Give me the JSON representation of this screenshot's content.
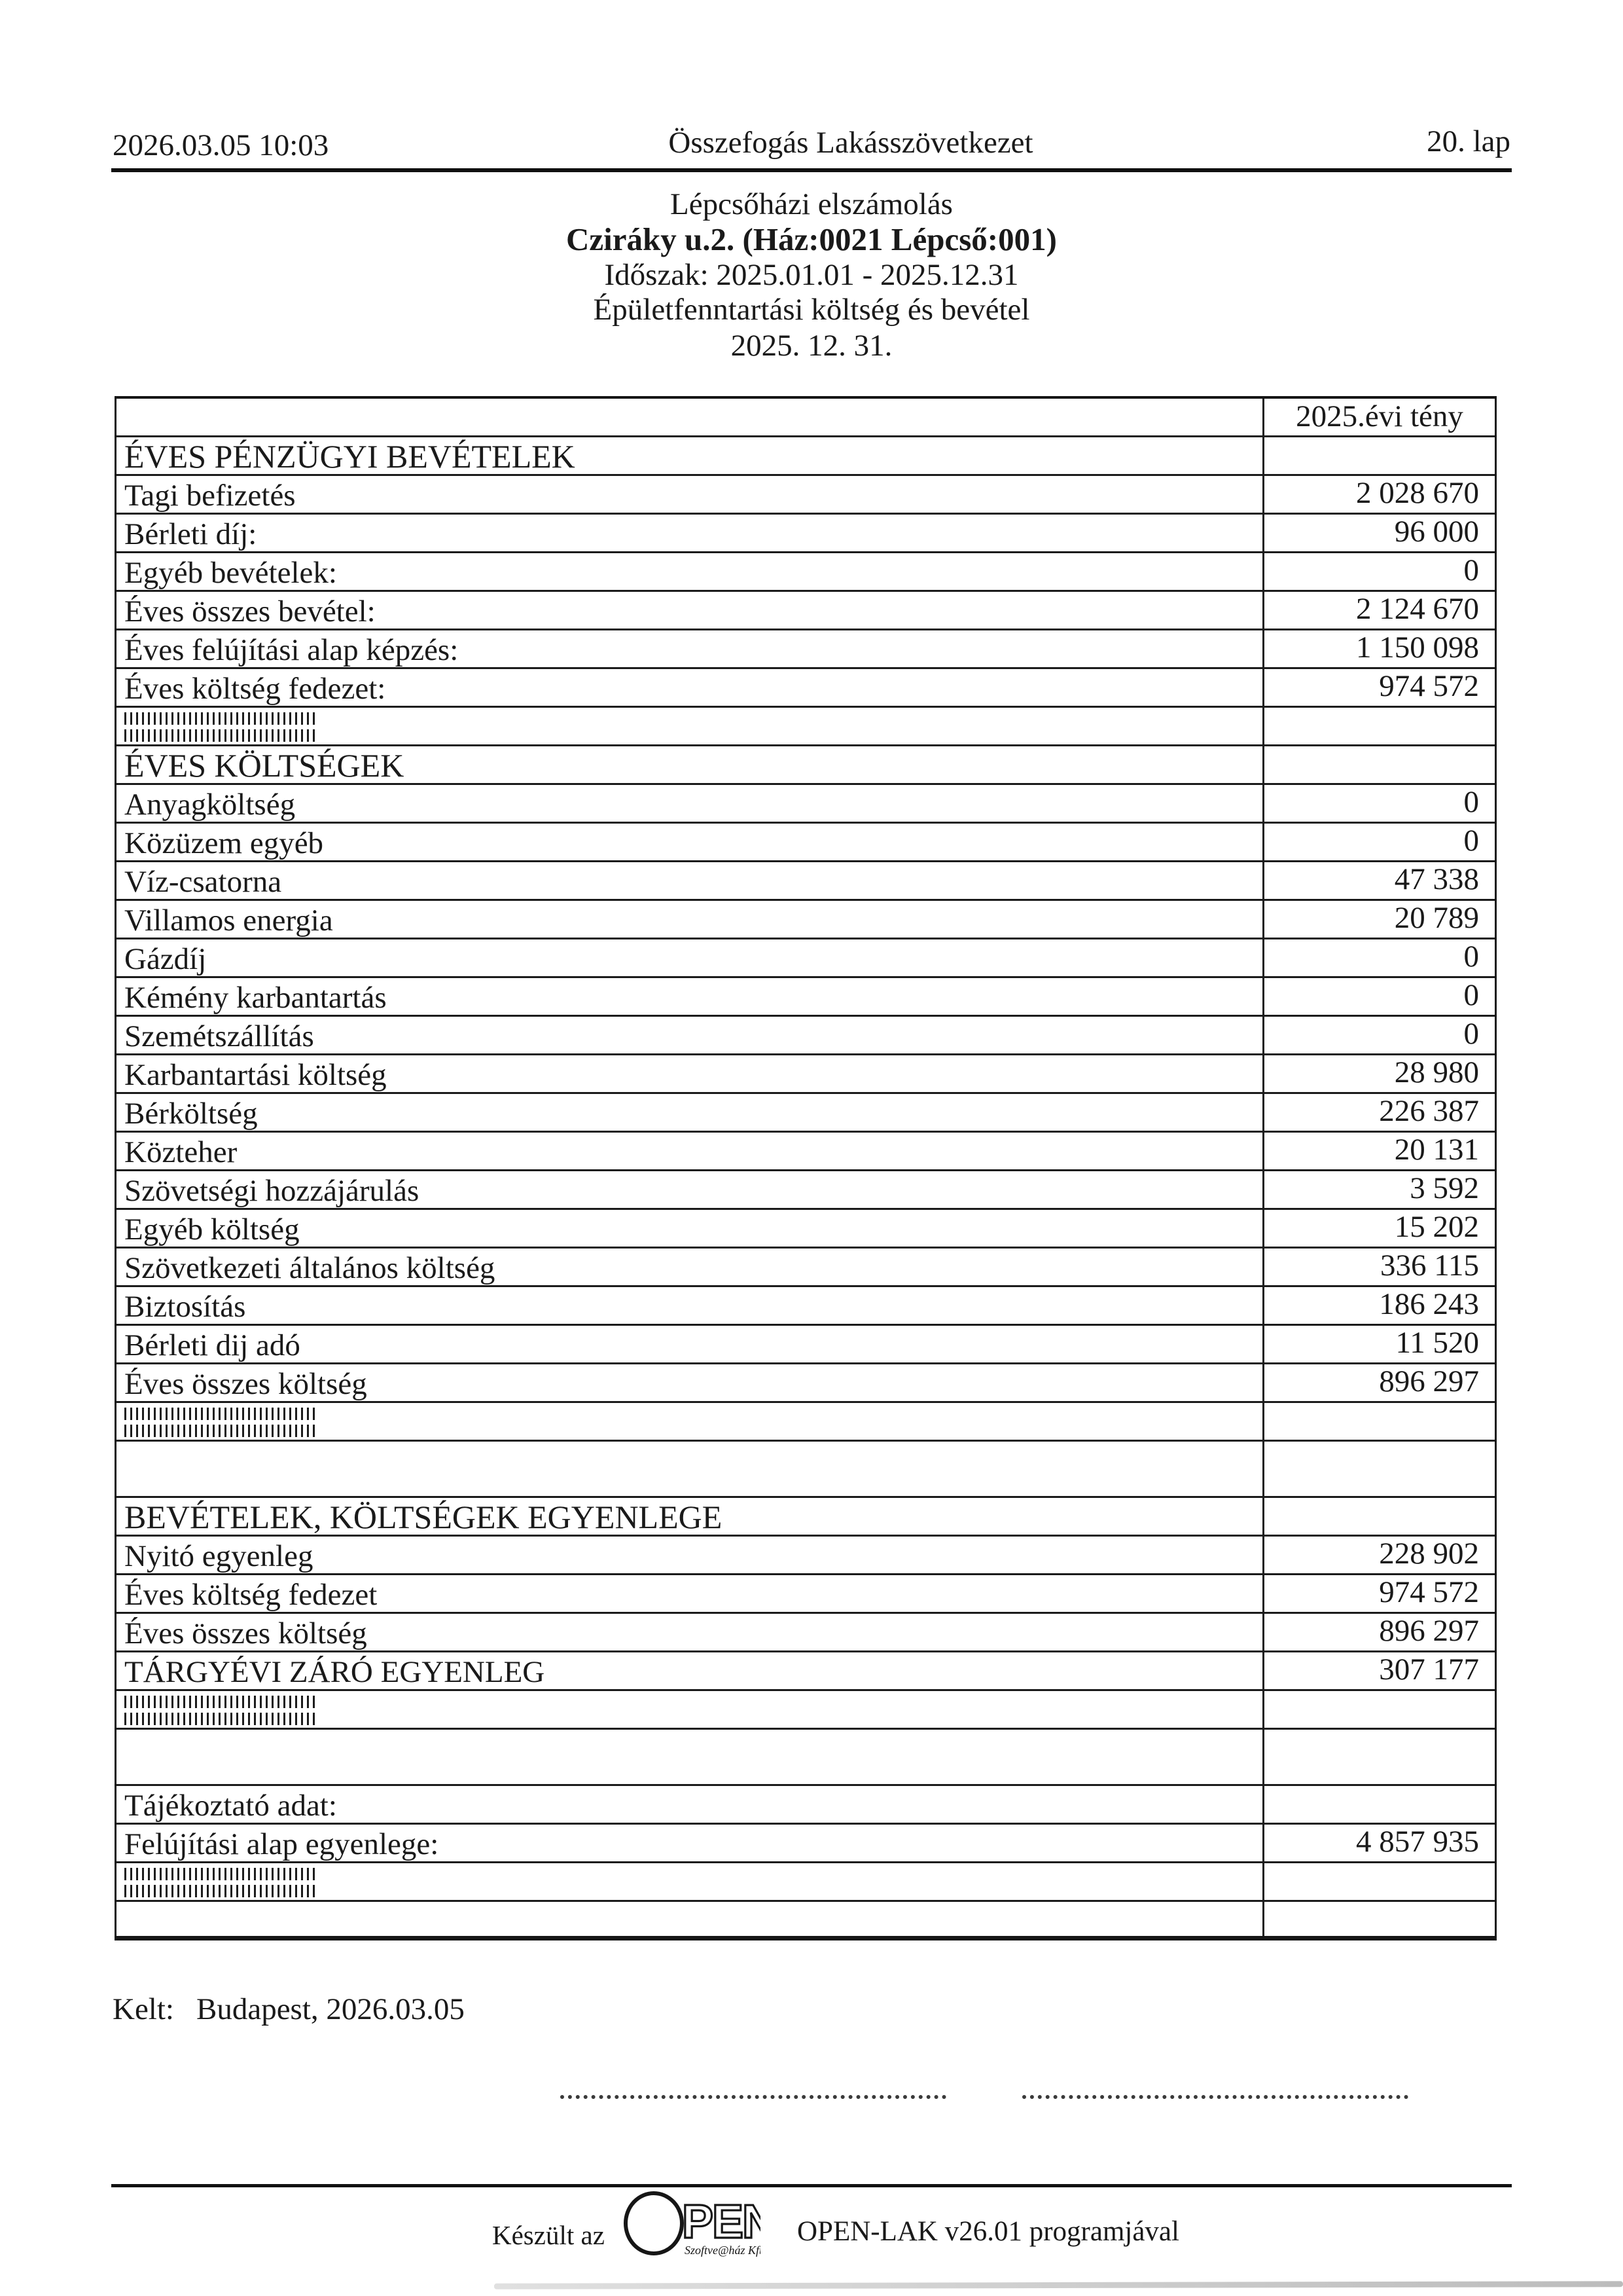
{
  "colors": {
    "ink": "#1a1a1a",
    "paper": "#ffffff"
  },
  "header": {
    "datetime": "2026.03.05 10:03",
    "organization": "Összefogás Lakásszövetkezet",
    "page_label": "20. lap"
  },
  "title": {
    "report_type": "Lépcsőházi elszámolás",
    "address": "Cziráky u.2. (Ház:0021 Lépcső:001)",
    "period": "Időszak: 2025.01.01 - 2025.12.31",
    "subject": "Épületfenntartási költség és bevétel",
    "date": "2025. 12. 31."
  },
  "table": {
    "rows": [
      {
        "kind": "value_header",
        "label": "",
        "value": "2025.évi tény"
      },
      {
        "kind": "section",
        "label": "ÉVES PÉNZÜGYI BEVÉTELEK",
        "indent": "sec2"
      },
      {
        "kind": "item",
        "label": "Tagi  befizetés",
        "value": "2 028 670",
        "indent": "item"
      },
      {
        "kind": "item",
        "label": "Bérleti díj:",
        "value": "96 000",
        "indent": "item"
      },
      {
        "kind": "item",
        "label": "Egyéb bevételek:",
        "value": "0",
        "indent": "item"
      },
      {
        "kind": "item",
        "label": "Éves összes bevétel:",
        "value": "2 124 670",
        "indent": "flush"
      },
      {
        "kind": "item",
        "label": "Éves felújítási alap képzés:",
        "value": "1 150 098",
        "indent": "item"
      },
      {
        "kind": "item",
        "label": "Éves költség fedezet:",
        "value": "974 572",
        "indent": "flush"
      },
      {
        "kind": "barcode"
      },
      {
        "kind": "section",
        "label": "ÉVES KÖLTSÉGEK",
        "indent": "sec3"
      },
      {
        "kind": "item",
        "label": "Anyagköltség",
        "value": "0",
        "indent": "item"
      },
      {
        "kind": "item",
        "label": "Közüzem egyéb",
        "value": "0",
        "indent": "item"
      },
      {
        "kind": "item",
        "label": "Víz-csatorna",
        "value": "47 338",
        "indent": "item"
      },
      {
        "kind": "item",
        "label": "Villamos energia",
        "value": "20 789",
        "indent": "item"
      },
      {
        "kind": "item",
        "label": "Gázdíj",
        "value": "0",
        "indent": "item"
      },
      {
        "kind": "item",
        "label": "Kémény karbantartás",
        "value": "0",
        "indent": "item"
      },
      {
        "kind": "item",
        "label": "Szemétszállítás",
        "value": "0",
        "indent": "item"
      },
      {
        "kind": "item",
        "label": "Karbantartási költség",
        "value": "28 980",
        "indent": "item"
      },
      {
        "kind": "item",
        "label": "Bérköltség",
        "value": "226 387",
        "indent": "item"
      },
      {
        "kind": "item",
        "label": "Közteher",
        "value": "20 131",
        "indent": "item"
      },
      {
        "kind": "item",
        "label": "Szövetségi hozzájárulás",
        "value": "3 592",
        "indent": "item"
      },
      {
        "kind": "item",
        "label": "Egyéb költség",
        "value": "15 202",
        "indent": "item"
      },
      {
        "kind": "item",
        "label": "Szövetkezeti általános költség",
        "value": "336 115",
        "indent": "item"
      },
      {
        "kind": "item",
        "label": "Biztosítás",
        "value": "186 243",
        "indent": "item"
      },
      {
        "kind": "item",
        "label": "Bérleti dij adó",
        "value": "11 520",
        "indent": "item"
      },
      {
        "kind": "item",
        "label": "Éves összes költség",
        "value": "896 297",
        "indent": "flush"
      },
      {
        "kind": "barcode"
      },
      {
        "kind": "empty",
        "height": "tall"
      },
      {
        "kind": "section",
        "label": "BEVÉTELEK, KÖLTSÉGEK EGYENLEGE",
        "indent": "sec1"
      },
      {
        "kind": "item",
        "label": "Nyitó egyenleg",
        "value": "228 902",
        "indent": "item2"
      },
      {
        "kind": "item",
        "label": "Éves költség fedezet",
        "value": "974 572",
        "indent": "item2"
      },
      {
        "kind": "item",
        "label": "Éves összes költség",
        "value": "896 297",
        "indent": "item2"
      },
      {
        "kind": "item",
        "label": "TÁRGYÉVI ZÁRÓ EGYENLEG",
        "value": "307 177",
        "indent": "flush"
      },
      {
        "kind": "barcode"
      },
      {
        "kind": "empty",
        "height": "tall"
      },
      {
        "kind": "item",
        "label": "Tájékoztató adat:",
        "indent": "flush"
      },
      {
        "kind": "item",
        "label": "Felújítási alap egyenlege:",
        "value": "4 857 935",
        "indent": "flush"
      },
      {
        "kind": "barcode"
      },
      {
        "kind": "empty",
        "height": "short"
      }
    ]
  },
  "signature": {
    "kelt_label": "Kelt:",
    "kelt_value": "Budapest, 2026.03.05"
  },
  "footer": {
    "made_with_prefix": "Készült az",
    "program": "OPEN-LAK v26.01 programjával",
    "logo": {
      "text": "PEN",
      "subtext": "Szoftve@ház Kft"
    }
  }
}
